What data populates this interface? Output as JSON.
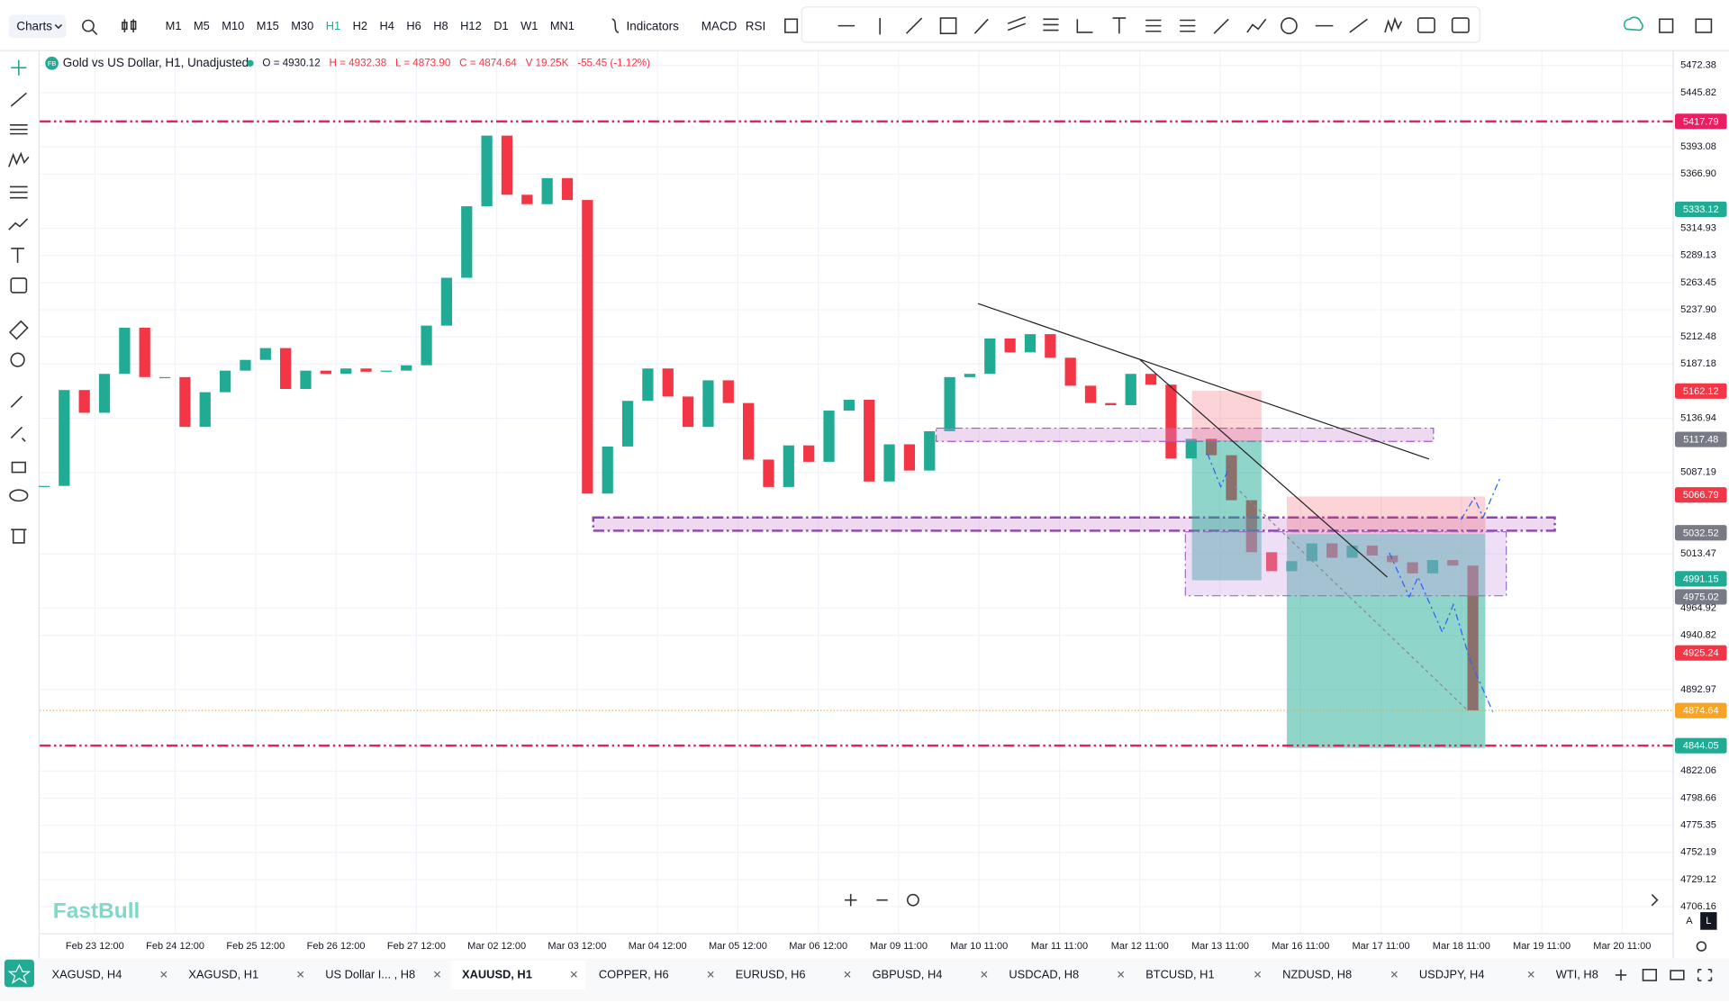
{
  "toolbar": {
    "menu": "Charts",
    "timeframes": [
      "M1",
      "M5",
      "M10",
      "M15",
      "M30",
      "H1",
      "H2",
      "H4",
      "H6",
      "H8",
      "H12",
      "D1",
      "W1",
      "MN1"
    ],
    "indicators": "Indicators",
    "macd": "MACD",
    "rsi": "RSI"
  },
  "legend": {
    "badge": "FB",
    "symbol": "Gold vs US Dollar, H1, Unadjusted",
    "items": [
      "O = 4930.12",
      "H = 4932.38",
      "L = 4873.90",
      "C = 4874.64",
      "V 19.25K",
      "-55.45 (-1.12%)"
    ]
  },
  "watermark": "FastBull",
  "scale_buttons": [
    "A",
    "L"
  ],
  "chart_data": {
    "type": "candlestick",
    "log_scale": true,
    "grid": true,
    "ylim": [
      4683.9,
      5486.5
    ],
    "yticks": [
      5472.38,
      5445.82,
      5393.08,
      {
        "value": 5366.9,
        "label": "5366.90"
      },
      5314.93,
      5289.13,
      5263.45,
      {
        "value": 5237.9,
        "label": "5237.90"
      },
      5212.48,
      5187.18,
      5136.94,
      5087.19,
      5013.47,
      4964.92,
      4940.82,
      4892.97,
      4822.06,
      4798.66,
      4775.35,
      4752.19,
      4729.12,
      4706.16
    ],
    "x_labels": [
      "Feb 23 12:00",
      "Feb 24 12:00",
      "Feb 25 12:00",
      "Feb 26 12:00",
      "Feb 27 12:00",
      "Mar 02 12:00",
      "Mar 03 12:00",
      "Mar 04 12:00",
      "Mar 05 12:00",
      "Mar 06 12:00",
      "Mar 09 11:00",
      "Mar 10 11:00",
      "Mar 11 11:00",
      "Mar 12 11:00",
      "Mar 13 11:00",
      "Mar 16 11:00",
      "Mar 17 11:00",
      "Mar 18 11:00",
      "Mar 19 11:00",
      "Mar 20 11:00"
    ],
    "up_color": "#22ab94",
    "down_color": "#f23645",
    "closes": [
      5075,
      5163,
      5142,
      5178,
      5221,
      5175,
      5175,
      5129,
      5161,
      5181,
      5191,
      5202,
      5164,
      5181,
      5178,
      5183,
      5180,
      5181,
      5186,
      5223,
      5268,
      5336,
      5404,
      5347,
      5338,
      5363,
      5342,
      5068,
      5111,
      5153,
      5183,
      5157,
      5129,
      5172,
      5151,
      5099,
      5074,
      5112,
      5097,
      5144,
      5154,
      5079,
      5113,
      5089,
      5125,
      5175,
      5178,
      5211,
      5198,
      5215,
      5193,
      5167,
      5151,
      5149,
      5178,
      5168,
      5100,
      5118,
      5103,
      5062,
      5015,
      4998,
      5007,
      5023,
      5010,
      5021,
      5012,
      5006,
      4996,
      5008,
      5003,
      4874.64
    ],
    "price_tags": [
      {
        "value": 5417.79,
        "color": "#e91e63"
      },
      {
        "value": 5333.12,
        "color": "#22ab94"
      },
      {
        "value": 5162.12,
        "color": "#f23645"
      },
      {
        "value": 5117.48,
        "color": "#787b86"
      },
      {
        "value": 5066.79,
        "color": "#f23645"
      },
      {
        "value": 5032.52,
        "color": "#787b86"
      },
      {
        "value": 4991.15,
        "color": "#22ab94"
      },
      {
        "value": 4975.02,
        "color": "#787b86"
      },
      {
        "value": 4925.24,
        "color": "#f23645"
      },
      {
        "value": 4874.64,
        "color": "#f7a325"
      },
      {
        "value": 4844.05,
        "color": "#22ab94"
      }
    ]
  },
  "tabs": [
    "XAGUSD, H4",
    "XAGUSD, H1",
    "US Dollar I... , H8",
    "XAUUSD, H1",
    "COPPER, H6",
    "EURUSD, H6",
    "GBPUSD, H4",
    "USDCAD, H8",
    "BTCUSD, H1",
    "NZDUSD, H8",
    "USDJPY, H4",
    "WTI, H8"
  ]
}
